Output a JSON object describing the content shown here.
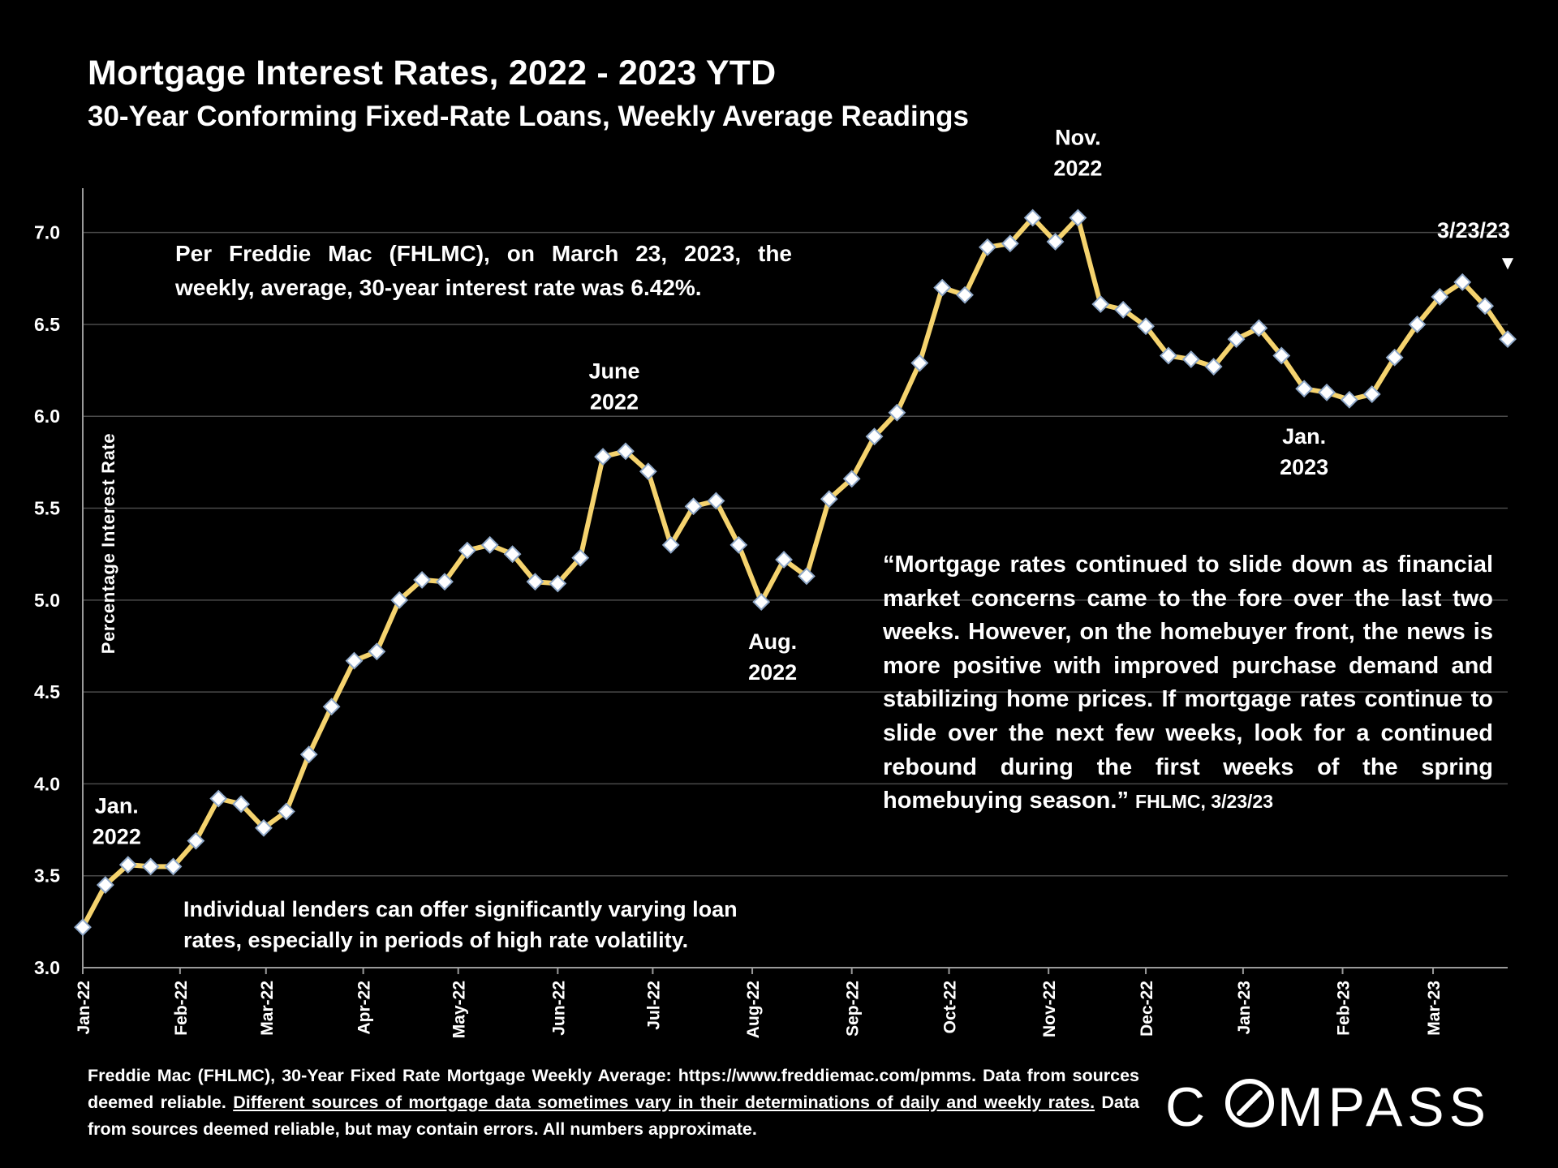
{
  "colors": {
    "background": "#000000",
    "line": "#F5D36E",
    "marker_fill": "#FFFFFF",
    "marker_stroke": "#8FA8C8",
    "gridline": "#4A4A4A",
    "text": "#FFFFFF"
  },
  "notes": {
    "top": "Per Freddie Mac (FHLMC), on March 23, 2023, the weekly, average, 30-year interest rate was 6.42%.",
    "bottom": "Individual lenders can offer significantly varying loan rates, especially in periods of high rate volatility."
  },
  "quote": {
    "text": "“Mortgage rates continued to slide down as financial market concerns came to the fore over the last two weeks. However, on the homebuyer front, the news is more positive with improved purchase demand and stabilizing home prices. If mortgage rates continue to slide over the next few weeks, look for a continued rebound during the first weeks of the spring homebuying season.”",
    "attribution": "FHLMC, 3/23/23"
  },
  "source": {
    "part1": "Freddie Mac (FHLMC), 30-Year Fixed Rate Mortgage Weekly Average:  https://www.freddiemac.com/pmms. Data from sources deemed reliable. ",
    "underlined": "Different sources of mortgage data sometimes vary in their determinations of daily and weekly rates.",
    "part2": " Data from sources deemed reliable, but may contain errors. All numbers approximate."
  },
  "logo": {
    "text": "COMPASS",
    "icon": "compass-logo-o-icon"
  },
  "chart_data": {
    "type": "line",
    "title": "Mortgage Interest Rates, 2022 - 2023 YTD",
    "subtitle": "30-Year Conforming Fixed-Rate Loans, Weekly Average Readings",
    "xlabel": "",
    "ylabel": "Percentage Interest  Rate",
    "ylim": [
      3.0,
      7.25
    ],
    "yticks": [
      "3.0",
      "3.5",
      "4.0",
      "4.5",
      "5.0",
      "5.5",
      "6.0",
      "6.5",
      "7.0"
    ],
    "grid": true,
    "month_ticks": [
      {
        "label": "Jan-22",
        "index": 0
      },
      {
        "label": "Feb-22",
        "index": 4.3
      },
      {
        "label": "Mar-22",
        "index": 8.1
      },
      {
        "label": "Apr-22",
        "index": 12.4
      },
      {
        "label": "May-22",
        "index": 16.6
      },
      {
        "label": "Jun-22",
        "index": 21.0
      },
      {
        "label": "Jul-22",
        "index": 25.2
      },
      {
        "label": "Aug-22",
        "index": 29.6
      },
      {
        "label": "Sep-22",
        "index": 34.0
      },
      {
        "label": "Oct-22",
        "index": 38.3
      },
      {
        "label": "Nov-22",
        "index": 42.7
      },
      {
        "label": "Dec-22",
        "index": 47.0
      },
      {
        "label": "Jan-23",
        "index": 51.3
      },
      {
        "label": "Feb-23",
        "index": 55.7
      },
      {
        "label": "Mar-23",
        "index": 59.7
      }
    ],
    "series": [
      {
        "name": "30-Year Fixed Rate Weekly Average",
        "values": [
          3.22,
          3.45,
          3.56,
          3.55,
          3.55,
          3.69,
          3.92,
          3.89,
          3.76,
          3.85,
          4.16,
          4.42,
          4.67,
          4.72,
          5.0,
          5.11,
          5.1,
          5.27,
          5.3,
          5.25,
          5.1,
          5.09,
          5.23,
          5.78,
          5.81,
          5.7,
          5.3,
          5.51,
          5.54,
          5.3,
          4.99,
          5.22,
          5.13,
          5.55,
          5.66,
          5.89,
          6.02,
          6.29,
          6.7,
          6.66,
          6.92,
          6.94,
          7.08,
          6.95,
          7.08,
          6.61,
          6.58,
          6.49,
          6.33,
          6.31,
          6.27,
          6.42,
          6.48,
          6.33,
          6.15,
          6.13,
          6.09,
          6.12,
          6.32,
          6.5,
          6.65,
          6.73,
          6.6,
          6.42
        ]
      }
    ],
    "annotations": [
      {
        "line1": "Jan.",
        "line2": "2022",
        "index": 1.5
      },
      {
        "line1": "June",
        "line2": "2022",
        "index": 23.5
      },
      {
        "line1": "Aug.",
        "line2": "2022",
        "index": 30.5
      },
      {
        "line1": "Nov.",
        "line2": "2022",
        "index": 44.0
      },
      {
        "line1": "Jan.",
        "line2": "2023",
        "index": 54.0
      },
      {
        "line1": "3/23/23",
        "marker": "▼",
        "index": 63
      }
    ]
  }
}
